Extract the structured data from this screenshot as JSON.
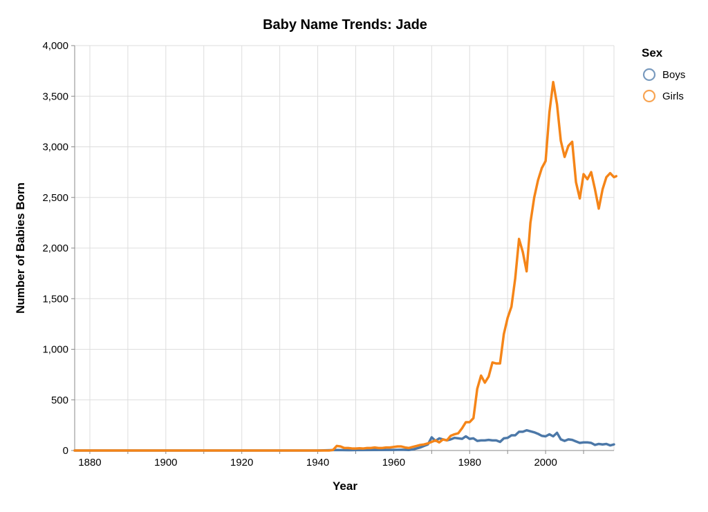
{
  "chart_data": {
    "type": "line",
    "title": "Baby Name Trends: Jade",
    "xlabel": "Year",
    "ylabel": "Number of Babies Born",
    "xlim": [
      1876,
      2018
    ],
    "ylim": [
      0,
      4000
    ],
    "x_ticks": [
      1880,
      1900,
      1920,
      1940,
      1960,
      1980,
      2000
    ],
    "x_tick_labels": [
      "1880",
      "1900",
      "1920",
      "1940",
      "1960",
      "1980",
      "2000"
    ],
    "x_minor_ticks": [
      1890,
      1910,
      1930,
      1950,
      1970,
      1990,
      2010
    ],
    "y_ticks": [
      0,
      500,
      1000,
      1500,
      2000,
      2500,
      3000,
      3500,
      4000
    ],
    "y_tick_labels": [
      "0",
      "500",
      "1,000",
      "1,500",
      "2,000",
      "2,500",
      "3,000",
      "3,500",
      "4,000"
    ],
    "grid": true,
    "legend": {
      "title": "Sex",
      "placement": "top-right",
      "entries": [
        "Boys",
        "Girls"
      ]
    },
    "series": [
      {
        "name": "Boys",
        "color": "#4c78a8",
        "points": [
          [
            1876,
            0
          ],
          [
            1900,
            0
          ],
          [
            1920,
            0
          ],
          [
            1940,
            0
          ],
          [
            1945,
            5
          ],
          [
            1948,
            3
          ],
          [
            1950,
            4
          ],
          [
            1955,
            5
          ],
          [
            1960,
            6
          ],
          [
            1962,
            8
          ],
          [
            1964,
            5
          ],
          [
            1965,
            10
          ],
          [
            1966,
            20
          ],
          [
            1967,
            30
          ],
          [
            1968,
            45
          ],
          [
            1969,
            60
          ],
          [
            1970,
            130
          ],
          [
            1971,
            95
          ],
          [
            1972,
            120
          ],
          [
            1973,
            110
          ],
          [
            1974,
            100
          ],
          [
            1975,
            110
          ],
          [
            1976,
            125
          ],
          [
            1977,
            120
          ],
          [
            1978,
            115
          ],
          [
            1979,
            140
          ],
          [
            1980,
            115
          ],
          [
            1981,
            120
          ],
          [
            1982,
            95
          ],
          [
            1983,
            100
          ],
          [
            1984,
            100
          ],
          [
            1985,
            105
          ],
          [
            1986,
            100
          ],
          [
            1987,
            100
          ],
          [
            1988,
            85
          ],
          [
            1989,
            120
          ],
          [
            1990,
            125
          ],
          [
            1991,
            150
          ],
          [
            1992,
            150
          ],
          [
            1993,
            185
          ],
          [
            1994,
            185
          ],
          [
            1995,
            200
          ],
          [
            1996,
            190
          ],
          [
            1997,
            180
          ],
          [
            1998,
            165
          ],
          [
            1999,
            145
          ],
          [
            2000,
            140
          ],
          [
            2001,
            160
          ],
          [
            2002,
            140
          ],
          [
            2003,
            175
          ],
          [
            2004,
            110
          ],
          [
            2005,
            95
          ],
          [
            2006,
            110
          ],
          [
            2007,
            105
          ],
          [
            2008,
            90
          ],
          [
            2009,
            75
          ],
          [
            2010,
            80
          ],
          [
            2011,
            80
          ],
          [
            2012,
            75
          ],
          [
            2013,
            55
          ],
          [
            2014,
            65
          ],
          [
            2015,
            60
          ],
          [
            2016,
            65
          ],
          [
            2017,
            50
          ],
          [
            2018,
            60
          ]
        ]
      },
      {
        "name": "Girls",
        "color": "#f58518",
        "points": [
          [
            1876,
            0
          ],
          [
            1900,
            0
          ],
          [
            1920,
            0
          ],
          [
            1940,
            0
          ],
          [
            1943,
            0
          ],
          [
            1944,
            5
          ],
          [
            1945,
            45
          ],
          [
            1946,
            40
          ],
          [
            1947,
            25
          ],
          [
            1948,
            25
          ],
          [
            1949,
            20
          ],
          [
            1950,
            20
          ],
          [
            1951,
            22
          ],
          [
            1952,
            20
          ],
          [
            1953,
            25
          ],
          [
            1954,
            25
          ],
          [
            1955,
            30
          ],
          [
            1956,
            25
          ],
          [
            1957,
            25
          ],
          [
            1958,
            30
          ],
          [
            1959,
            30
          ],
          [
            1960,
            35
          ],
          [
            1961,
            40
          ],
          [
            1962,
            40
          ],
          [
            1963,
            30
          ],
          [
            1964,
            25
          ],
          [
            1965,
            35
          ],
          [
            1966,
            45
          ],
          [
            1967,
            55
          ],
          [
            1968,
            60
          ],
          [
            1969,
            70
          ],
          [
            1970,
            85
          ],
          [
            1971,
            100
          ],
          [
            1972,
            80
          ],
          [
            1973,
            110
          ],
          [
            1974,
            100
          ],
          [
            1975,
            145
          ],
          [
            1976,
            160
          ],
          [
            1977,
            170
          ],
          [
            1978,
            220
          ],
          [
            1979,
            280
          ],
          [
            1980,
            280
          ],
          [
            1981,
            320
          ],
          [
            1982,
            610
          ],
          [
            1983,
            740
          ],
          [
            1984,
            670
          ],
          [
            1985,
            730
          ],
          [
            1986,
            870
          ],
          [
            1987,
            860
          ],
          [
            1988,
            860
          ],
          [
            1989,
            1150
          ],
          [
            1990,
            1310
          ],
          [
            1991,
            1420
          ],
          [
            1992,
            1700
          ],
          [
            1993,
            2090
          ],
          [
            1994,
            1960
          ],
          [
            1995,
            1770
          ],
          [
            1996,
            2250
          ],
          [
            1997,
            2500
          ],
          [
            1998,
            2670
          ],
          [
            1999,
            2790
          ],
          [
            2000,
            2860
          ],
          [
            2001,
            3340
          ],
          [
            2002,
            3640
          ],
          [
            2003,
            3420
          ],
          [
            2004,
            3060
          ],
          [
            2005,
            2900
          ],
          [
            2006,
            3010
          ],
          [
            2007,
            3050
          ],
          [
            2008,
            2650
          ],
          [
            2009,
            2490
          ],
          [
            2010,
            2730
          ],
          [
            2011,
            2680
          ],
          [
            2012,
            2750
          ],
          [
            2013,
            2580
          ],
          [
            2014,
            2390
          ],
          [
            2015,
            2580
          ],
          [
            2016,
            2700
          ],
          [
            2017,
            2740
          ],
          [
            2018,
            2700
          ],
          [
            2018.6,
            2710
          ]
        ]
      }
    ]
  }
}
